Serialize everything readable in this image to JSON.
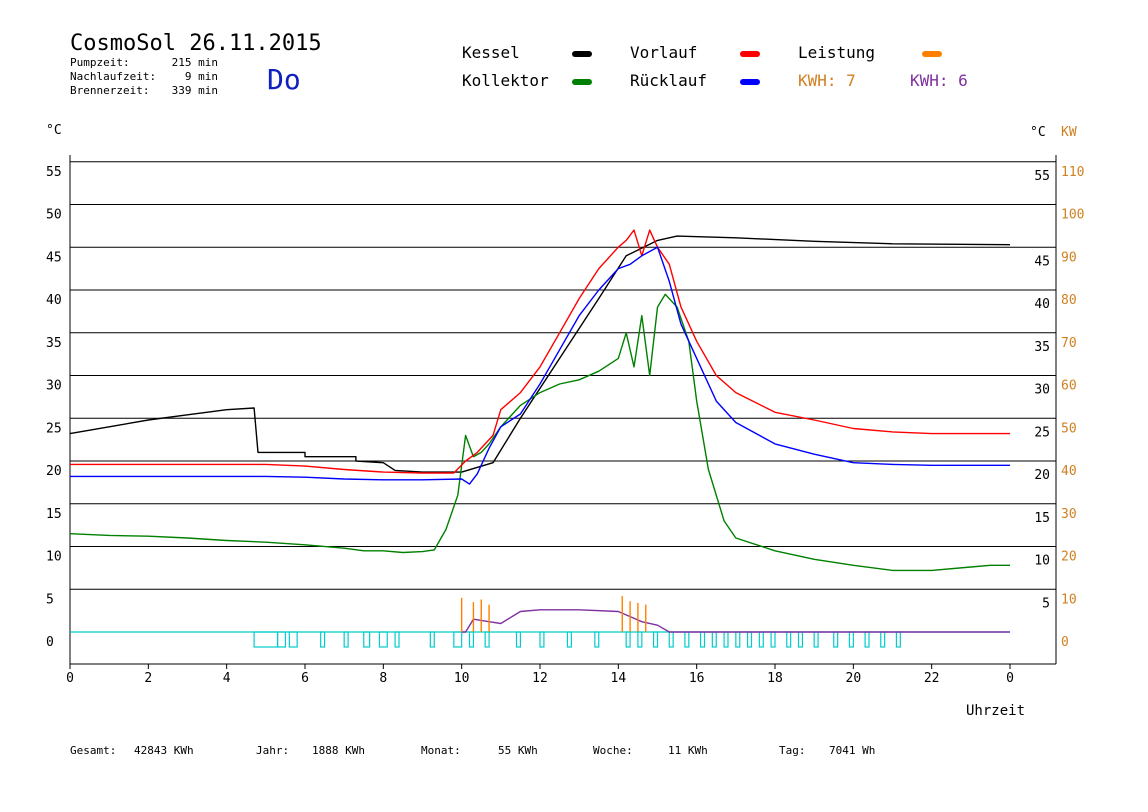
{
  "header": {
    "title": "CosmoSol 26.11.2015",
    "day": "Do",
    "stats": [
      {
        "label": "Pumpzeit:",
        "value": "215 min"
      },
      {
        "label": "Nachlaufzeit:",
        "value": "9 min"
      },
      {
        "label": "Brennerzeit:",
        "value": "339 min"
      }
    ]
  },
  "legend": {
    "items": [
      {
        "label": "Kessel",
        "color": "#000000"
      },
      {
        "label": "Kollektor",
        "color": "#008000"
      },
      {
        "label": "Vorlauf",
        "color": "#ff0000"
      },
      {
        "label": "Rücklauf",
        "color": "#0000ff"
      },
      {
        "label": "Leistung",
        "color": "#ff8000"
      }
    ],
    "kwh1": "KWH: 7",
    "kwh2": "KWH: 6",
    "kwh1_color": "#d08020",
    "kwh2_color": "#8030a0"
  },
  "axes": {
    "left_unit": "°C",
    "right_unit": "°C",
    "right_unit2": "KW",
    "xlabel": "Uhrzeit",
    "x_ticks": [
      "0",
      "2",
      "4",
      "6",
      "8",
      "10",
      "12",
      "14",
      "16",
      "18",
      "20",
      "22",
      "0"
    ],
    "y_ticks_left": [
      "55",
      "50",
      "45",
      "40",
      "35",
      "30",
      "25",
      "20",
      "15",
      "10",
      "5",
      "0"
    ],
    "y_ticks_right": [
      "55",
      "45",
      "40",
      "35",
      "30",
      "25",
      "20",
      "15",
      "10",
      "5"
    ],
    "y_ticks_right_kw": [
      "110",
      "100",
      "90",
      "80",
      "70",
      "60",
      "50",
      "40",
      "30",
      "20",
      "10",
      "0"
    ]
  },
  "footer": [
    {
      "label": "Gesamt:",
      "value": "42843 KWh"
    },
    {
      "label": "Jahr:",
      "value": "1888 KWh"
    },
    {
      "label": "Monat:",
      "value": "55 KWh"
    },
    {
      "label": "Woche:",
      "value": "11 KWh"
    },
    {
      "label": "Tag:",
      "value": "7041 Wh"
    }
  ],
  "chart_data": {
    "type": "line",
    "xlim": [
      0,
      24
    ],
    "ylim": [
      -4,
      57
    ],
    "y2lim": [
      -8,
      114
    ],
    "grid": true,
    "series": [
      {
        "name": "Kessel",
        "color": "#000000",
        "points": [
          [
            0,
            23.2
          ],
          [
            1,
            24
          ],
          [
            2,
            24.8
          ],
          [
            3,
            25.4
          ],
          [
            4,
            26
          ],
          [
            4.7,
            26.2
          ],
          [
            4.8,
            21
          ],
          [
            6,
            21
          ],
          [
            6,
            20.5
          ],
          [
            7.3,
            20.5
          ],
          [
            7.3,
            20
          ],
          [
            8,
            19.8
          ],
          [
            8.3,
            18.9
          ],
          [
            9,
            18.7
          ],
          [
            10,
            18.7
          ],
          [
            10.8,
            19.8
          ],
          [
            11.5,
            25
          ],
          [
            12.5,
            32
          ],
          [
            13.5,
            39
          ],
          [
            14.2,
            44
          ],
          [
            15,
            45.8
          ],
          [
            15.5,
            46.3
          ],
          [
            17,
            46.1
          ],
          [
            19,
            45.7
          ],
          [
            21,
            45.4
          ],
          [
            24,
            45.3
          ]
        ]
      },
      {
        "name": "Kollektor",
        "color": "#008000",
        "points": [
          [
            0,
            11.5
          ],
          [
            1,
            11.3
          ],
          [
            2,
            11.2
          ],
          [
            3,
            11
          ],
          [
            4,
            10.7
          ],
          [
            5,
            10.5
          ],
          [
            6,
            10.2
          ],
          [
            7,
            9.8
          ],
          [
            7.5,
            9.5
          ],
          [
            8,
            9.5
          ],
          [
            8.5,
            9.3
          ],
          [
            9,
            9.4
          ],
          [
            9.3,
            9.6
          ],
          [
            9.6,
            12
          ],
          [
            9.9,
            16
          ],
          [
            10.1,
            23
          ],
          [
            10.3,
            20.5
          ],
          [
            10.5,
            21
          ],
          [
            10.7,
            22
          ],
          [
            11,
            24
          ],
          [
            11.5,
            26.5
          ],
          [
            12,
            28
          ],
          [
            12.5,
            29
          ],
          [
            13,
            29.5
          ],
          [
            13.5,
            30.5
          ],
          [
            14,
            32
          ],
          [
            14.2,
            35
          ],
          [
            14.4,
            31
          ],
          [
            14.6,
            37
          ],
          [
            14.8,
            30
          ],
          [
            15,
            38
          ],
          [
            15.2,
            39.5
          ],
          [
            15.5,
            38
          ],
          [
            15.8,
            34
          ],
          [
            16,
            27
          ],
          [
            16.3,
            19
          ],
          [
            16.7,
            13
          ],
          [
            17,
            11
          ],
          [
            18,
            9.5
          ],
          [
            19,
            8.5
          ],
          [
            20,
            7.8
          ],
          [
            21,
            7.2
          ],
          [
            22,
            7.2
          ],
          [
            23,
            7.6
          ],
          [
            23.5,
            7.8
          ],
          [
            24,
            7.8
          ]
        ]
      },
      {
        "name": "Vorlauf",
        "color": "#ff0000",
        "points": [
          [
            0,
            19.6
          ],
          [
            1,
            19.6
          ],
          [
            3,
            19.6
          ],
          [
            5,
            19.6
          ],
          [
            6,
            19.4
          ],
          [
            7,
            19
          ],
          [
            8,
            18.7
          ],
          [
            9,
            18.6
          ],
          [
            9.8,
            18.6
          ],
          [
            10.1,
            20
          ],
          [
            10.4,
            21
          ],
          [
            10.8,
            23
          ],
          [
            11,
            26
          ],
          [
            11.5,
            28
          ],
          [
            12,
            31
          ],
          [
            12.5,
            35
          ],
          [
            13,
            39
          ],
          [
            13.5,
            42.5
          ],
          [
            14,
            45
          ],
          [
            14.2,
            45.8
          ],
          [
            14.4,
            47
          ],
          [
            14.6,
            44
          ],
          [
            14.8,
            47
          ],
          [
            15,
            45
          ],
          [
            15.3,
            43
          ],
          [
            15.6,
            38
          ],
          [
            16,
            34
          ],
          [
            16.5,
            30
          ],
          [
            17,
            28
          ],
          [
            18,
            25.7
          ],
          [
            19,
            24.8
          ],
          [
            20,
            23.8
          ],
          [
            21,
            23.4
          ],
          [
            22,
            23.2
          ],
          [
            23,
            23.2
          ],
          [
            24,
            23.2
          ]
        ]
      },
      {
        "name": "Rücklauf",
        "color": "#0000ff",
        "points": [
          [
            0,
            18.2
          ],
          [
            2,
            18.2
          ],
          [
            4,
            18.2
          ],
          [
            5,
            18.2
          ],
          [
            6,
            18.1
          ],
          [
            7,
            17.9
          ],
          [
            8,
            17.8
          ],
          [
            9,
            17.8
          ],
          [
            10,
            17.9
          ],
          [
            10.2,
            17.3
          ],
          [
            10.4,
            18.5
          ],
          [
            10.7,
            21.5
          ],
          [
            11,
            24
          ],
          [
            11.5,
            25.5
          ],
          [
            12,
            29
          ],
          [
            12.5,
            33
          ],
          [
            13,
            37
          ],
          [
            13.5,
            40
          ],
          [
            14,
            42.5
          ],
          [
            14.3,
            43
          ],
          [
            14.6,
            44
          ],
          [
            15,
            45
          ],
          [
            15.3,
            41
          ],
          [
            15.6,
            36
          ],
          [
            16,
            32
          ],
          [
            16.5,
            27
          ],
          [
            17,
            24.5
          ],
          [
            18,
            22
          ],
          [
            19,
            20.8
          ],
          [
            20,
            19.8
          ],
          [
            21,
            19.6
          ],
          [
            22,
            19.5
          ],
          [
            23,
            19.5
          ],
          [
            24,
            19.5
          ]
        ]
      },
      {
        "name": "Leistung",
        "color": "#8030a0",
        "points": [
          [
            10,
            0
          ],
          [
            10.1,
            0
          ],
          [
            10.3,
            1.5
          ],
          [
            10.7,
            1.2
          ],
          [
            11,
            1
          ],
          [
            11.5,
            2.4
          ],
          [
            12,
            2.6
          ],
          [
            13,
            2.6
          ],
          [
            14,
            2.4
          ],
          [
            14.3,
            1.8
          ],
          [
            14.6,
            1.2
          ],
          [
            15,
            0.8
          ],
          [
            15.3,
            0
          ],
          [
            24,
            0
          ]
        ]
      }
    ]
  }
}
